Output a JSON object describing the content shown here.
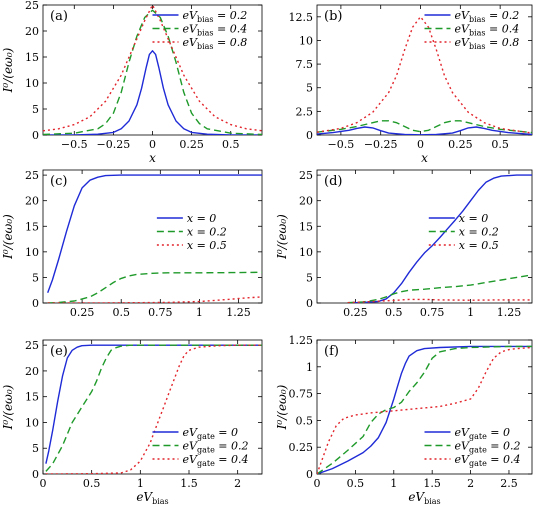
{
  "colors": {
    "blue": "#1f2bd6",
    "green": "#1f9a2a",
    "red": "#e2242b"
  },
  "chart_data": [
    {
      "type": "line",
      "panel_label": "(a)",
      "xlabel": "x",
      "ylabel": "I⁰/(eω₀)",
      "xlim": [
        -0.7,
        0.7
      ],
      "ylim": [
        0,
        25
      ],
      "xticks": [
        -0.5,
        -0.25,
        0,
        0.25,
        0.5
      ],
      "xticklabels": [
        "−0.5",
        "−0.25",
        "0",
        "0.25",
        "0.5"
      ],
      "yticks": [
        0,
        5,
        10,
        15,
        20,
        25
      ],
      "yticklabels": [
        "0",
        "5",
        "10",
        "15",
        "20",
        "25"
      ],
      "legend": "top-right",
      "series": [
        {
          "name": "eVbias = 0.2",
          "color": "blue",
          "dash": "solid",
          "x": [
            -0.7,
            -0.5,
            -0.35,
            -0.25,
            -0.2,
            -0.15,
            -0.1,
            -0.07,
            -0.04,
            -0.02,
            0,
            0.02,
            0.04,
            0.07,
            0.1,
            0.15,
            0.2,
            0.25,
            0.35,
            0.5,
            0.7
          ],
          "y": [
            0,
            0.02,
            0.15,
            0.5,
            1.2,
            2.7,
            5.8,
            9,
            13,
            15.5,
            16.2,
            15.5,
            13,
            9,
            5.8,
            2.7,
            1.2,
            0.5,
            0.15,
            0.02,
            0
          ]
        },
        {
          "name": "eVbias = 0.4",
          "color": "green",
          "dash": "dashed",
          "x": [
            -0.7,
            -0.5,
            -0.35,
            -0.3,
            -0.25,
            -0.2,
            -0.15,
            -0.1,
            -0.05,
            0,
            0.05,
            0.1,
            0.15,
            0.2,
            0.25,
            0.3,
            0.35,
            0.5,
            0.7
          ],
          "y": [
            0.1,
            0.35,
            1.2,
            2.2,
            4.2,
            8.2,
            14,
            19,
            22.6,
            24,
            22.6,
            19,
            14,
            8.2,
            4.2,
            2.2,
            1.2,
            0.35,
            0.1
          ]
        },
        {
          "name": "eVbias = 0.8",
          "color": "red",
          "dash": "dotted",
          "x": [
            -0.7,
            -0.6,
            -0.5,
            -0.4,
            -0.3,
            -0.2,
            -0.1,
            -0.05,
            0,
            0.05,
            0.1,
            0.2,
            0.3,
            0.4,
            0.5,
            0.6,
            0.7
          ],
          "y": [
            0.8,
            1.2,
            2,
            3.5,
            6.5,
            11.5,
            18.5,
            22,
            25,
            22,
            18.5,
            11.5,
            6.5,
            3.5,
            2,
            1.2,
            0.8
          ]
        }
      ]
    },
    {
      "type": "line",
      "panel_label": "(b)",
      "xlabel": "x",
      "ylabel": "",
      "xlim": [
        -0.65,
        0.7
      ],
      "ylim": [
        0,
        13.75
      ],
      "xticks": [
        -0.5,
        -0.25,
        0,
        0.25,
        0.5
      ],
      "xticklabels": [
        "−0.5",
        "−0.25",
        "0",
        "0.25",
        "0.5"
      ],
      "yticks": [
        0,
        2.5,
        5,
        7.5,
        10,
        12.5
      ],
      "yticklabels": [
        "0",
        "2.5",
        "5",
        "7.5",
        "10",
        "12.5"
      ],
      "legend": "top-right",
      "series": [
        {
          "name": "eVbias = 0.2",
          "color": "blue",
          "dash": "solid",
          "x": [
            -0.65,
            -0.55,
            -0.45,
            -0.4,
            -0.35,
            -0.3,
            -0.25,
            -0.2,
            -0.1,
            0,
            0.1,
            0.2,
            0.25,
            0.3,
            0.35,
            0.4,
            0.45,
            0.55,
            0.7
          ],
          "y": [
            0.1,
            0.25,
            0.5,
            0.7,
            0.85,
            0.75,
            0.45,
            0.2,
            0.05,
            0.02,
            0.05,
            0.2,
            0.45,
            0.75,
            0.85,
            0.7,
            0.5,
            0.25,
            0.05
          ]
        },
        {
          "name": "eVbias = 0.4",
          "color": "green",
          "dash": "dashed",
          "x": [
            -0.65,
            -0.5,
            -0.4,
            -0.3,
            -0.25,
            -0.2,
            -0.15,
            -0.1,
            -0.05,
            0,
            0.05,
            0.1,
            0.15,
            0.2,
            0.25,
            0.3,
            0.4,
            0.5,
            0.7
          ],
          "y": [
            0.3,
            0.6,
            0.9,
            1.3,
            1.5,
            1.5,
            1.3,
            0.9,
            0.5,
            0.35,
            0.5,
            0.9,
            1.3,
            1.5,
            1.5,
            1.3,
            0.9,
            0.6,
            0.25
          ]
        },
        {
          "name": "eVbias = 0.8",
          "color": "red",
          "dash": "dotted",
          "x": [
            -0.65,
            -0.5,
            -0.4,
            -0.3,
            -0.2,
            -0.15,
            -0.1,
            -0.05,
            0,
            0.05,
            0.1,
            0.15,
            0.2,
            0.3,
            0.4,
            0.5,
            0.7
          ],
          "y": [
            0.3,
            0.7,
            1.3,
            2.4,
            4.5,
            6.3,
            9,
            11.4,
            12.5,
            11.4,
            9,
            6.3,
            4.5,
            2.4,
            1.3,
            0.7,
            0.2
          ]
        }
      ]
    },
    {
      "type": "line",
      "panel_label": "(c)",
      "xlabel": "",
      "ylabel": "I⁰/(eω₀)",
      "xlim": [
        0,
        1.4
      ],
      "ylim": [
        0,
        26
      ],
      "xticks": [
        0.25,
        0.5,
        0.75,
        1,
        1.25
      ],
      "xticklabels": [
        "0.25",
        "0.5",
        "0.75",
        "1",
        "1.25"
      ],
      "yticks": [
        0,
        5,
        10,
        15,
        20,
        25
      ],
      "yticklabels": [
        "0",
        "5",
        "10",
        "15",
        "20",
        "25"
      ],
      "legend": "center-right",
      "series": [
        {
          "name": "x = 0",
          "color": "blue",
          "dash": "solid",
          "x": [
            0.03,
            0.06,
            0.1,
            0.15,
            0.2,
            0.25,
            0.3,
            0.35,
            0.4,
            0.5,
            0.6,
            0.8,
            1,
            1.2,
            1.4
          ],
          "y": [
            2,
            4.5,
            8.5,
            14,
            19,
            22.5,
            24,
            24.6,
            24.9,
            25,
            25,
            25,
            25,
            25,
            25
          ]
        },
        {
          "name": "x = 0.2",
          "color": "green",
          "dash": "dashed",
          "x": [
            0.03,
            0.1,
            0.2,
            0.3,
            0.35,
            0.4,
            0.45,
            0.5,
            0.55,
            0.6,
            0.7,
            0.8,
            1,
            1.2,
            1.4
          ],
          "y": [
            0.02,
            0.1,
            0.4,
            1.2,
            2,
            3,
            4,
            4.8,
            5.3,
            5.6,
            5.8,
            5.9,
            5.9,
            5.95,
            6
          ]
        },
        {
          "name": "x = 0.5",
          "color": "red",
          "dash": "dotted",
          "x": [
            0.03,
            0.4,
            0.6,
            0.8,
            1,
            1.1,
            1.2,
            1.3,
            1.4
          ],
          "y": [
            0,
            0.02,
            0.05,
            0.12,
            0.3,
            0.5,
            0.75,
            1,
            1.2
          ]
        }
      ]
    },
    {
      "type": "line",
      "panel_label": "(d)",
      "xlabel": "",
      "ylabel": "I⁰/(eω₀)",
      "xlim": [
        0,
        1.4
      ],
      "ylim": [
        0,
        26
      ],
      "xticks": [
        0.25,
        0.5,
        0.75,
        1,
        1.25
      ],
      "xticklabels": [
        "0.25",
        "0.5",
        "0.75",
        "1",
        "1.25"
      ],
      "yticks": [
        0,
        5,
        10,
        15,
        20,
        25
      ],
      "yticklabels": [
        "0",
        "5",
        "10",
        "15",
        "20",
        "25"
      ],
      "legend": "center-right",
      "series": [
        {
          "name": "x = 0",
          "color": "blue",
          "dash": "solid",
          "x": [
            0.2,
            0.3,
            0.4,
            0.45,
            0.5,
            0.55,
            0.6,
            0.65,
            0.7,
            0.75,
            0.8,
            0.85,
            0.9,
            0.95,
            1,
            1.05,
            1.1,
            1.15,
            1.2,
            1.3,
            1.4
          ],
          "y": [
            0,
            0.1,
            0.3,
            0.8,
            2,
            3.8,
            6,
            8,
            9.8,
            11.2,
            12.8,
            14.5,
            16.2,
            18,
            20,
            22,
            23.6,
            24.4,
            24.8,
            25,
            25
          ]
        },
        {
          "name": "x = 0.2",
          "color": "green",
          "dash": "dashed",
          "x": [
            0.2,
            0.3,
            0.4,
            0.45,
            0.5,
            0.55,
            0.6,
            0.7,
            0.8,
            0.9,
            1,
            1.1,
            1.2,
            1.3,
            1.4
          ],
          "y": [
            0.05,
            0.2,
            0.7,
            1.2,
            1.8,
            2.2,
            2.5,
            2.7,
            3,
            3.2,
            3.5,
            4,
            4.5,
            5,
            5.5
          ]
        },
        {
          "name": "x = 0.5",
          "color": "red",
          "dash": "dotted",
          "x": [
            0.2,
            0.3,
            0.4,
            0.5,
            0.6,
            0.7,
            0.8,
            1,
            1.2,
            1.4
          ],
          "y": [
            0.05,
            0.2,
            0.35,
            0.5,
            0.7,
            0.7,
            0.6,
            0.55,
            0.6,
            0.6
          ]
        }
      ]
    },
    {
      "type": "line",
      "panel_label": "(e)",
      "xlabel": "eVbias",
      "ylabel": "I⁰/(eω₀)",
      "xlim": [
        0,
        2.25
      ],
      "ylim": [
        0,
        26
      ],
      "xticks": [
        0,
        0.5,
        1,
        1.5,
        2
      ],
      "xticklabels": [
        "0",
        "0.5",
        "1",
        "1.5",
        "2"
      ],
      "yticks": [
        0,
        5,
        10,
        15,
        20,
        25
      ],
      "yticklabels": [
        "0",
        "5",
        "10",
        "15",
        "20",
        "25"
      ],
      "legend": "bottom-right",
      "series": [
        {
          "name": "eVgate = 0",
          "color": "blue",
          "dash": "solid",
          "x": [
            0.03,
            0.06,
            0.1,
            0.15,
            0.2,
            0.25,
            0.3,
            0.35,
            0.4,
            0.5,
            0.6,
            0.8,
            1,
            1.5,
            2,
            2.25
          ],
          "y": [
            2,
            4.5,
            8.5,
            14,
            19,
            22.5,
            24,
            24.6,
            24.9,
            25,
            25,
            25,
            25,
            25,
            25,
            25
          ]
        },
        {
          "name": "eVgate = 0.2",
          "color": "green",
          "dash": "dashed",
          "x": [
            0.03,
            0.1,
            0.2,
            0.3,
            0.4,
            0.5,
            0.55,
            0.6,
            0.65,
            0.7,
            0.75,
            0.8,
            0.9,
            1,
            1.5,
            2,
            2.25
          ],
          "y": [
            0.5,
            2,
            5.5,
            10,
            13,
            16,
            18,
            20.5,
            22.5,
            24,
            24.5,
            24.8,
            25,
            25,
            25,
            25,
            25
          ]
        },
        {
          "name": "eVgate = 0.4",
          "color": "red",
          "dash": "dotted",
          "x": [
            0.03,
            0.5,
            0.8,
            0.9,
            1,
            1.1,
            1.15,
            1.2,
            1.25,
            1.3,
            1.35,
            1.4,
            1.45,
            1.5,
            1.6,
            1.8,
            2,
            2.25
          ],
          "y": [
            0,
            0.05,
            0.2,
            0.8,
            2.5,
            6,
            8.5,
            11,
            13.5,
            16,
            18.5,
            21,
            23,
            24,
            24.6,
            24.9,
            25,
            25
          ]
        }
      ]
    },
    {
      "type": "line",
      "panel_label": "(f)",
      "xlabel": "eVbias",
      "ylabel": "I⁰/(eω₀)",
      "xlim": [
        0,
        2.8
      ],
      "ylim": [
        0,
        1.25
      ],
      "xticks": [
        0,
        0.5,
        1,
        1.5,
        2,
        2.5
      ],
      "xticklabels": [
        "0",
        "0.5",
        "1",
        "1.5",
        "2",
        "2.5"
      ],
      "yticks": [
        0,
        0.25,
        0.5,
        0.75,
        1,
        1.25
      ],
      "yticklabels": [
        "0",
        "0.25",
        "0.5",
        "0.75",
        "1",
        "1.25"
      ],
      "legend": "bottom-right",
      "series": [
        {
          "name": "eVgate = 0",
          "color": "blue",
          "dash": "solid",
          "x": [
            0,
            0.2,
            0.4,
            0.6,
            0.7,
            0.8,
            0.9,
            1,
            1.05,
            1.1,
            1.15,
            1.2,
            1.3,
            1.4,
            1.6,
            2,
            2.5,
            2.8
          ],
          "y": [
            0,
            0.05,
            0.12,
            0.2,
            0.26,
            0.34,
            0.48,
            0.7,
            0.82,
            0.94,
            1.03,
            1.1,
            1.15,
            1.17,
            1.18,
            1.19,
            1.19,
            1.19
          ]
        },
        {
          "name": "eVgate = 0.2",
          "color": "green",
          "dash": "dashed",
          "x": [
            0,
            0.2,
            0.4,
            0.6,
            0.7,
            0.8,
            0.9,
            1,
            1.1,
            1.2,
            1.3,
            1.4,
            1.5,
            1.6,
            1.8,
            2,
            2.5,
            2.8
          ],
          "y": [
            0,
            0.1,
            0.22,
            0.35,
            0.48,
            0.56,
            0.6,
            0.62,
            0.67,
            0.77,
            0.85,
            0.95,
            1.08,
            1.14,
            1.17,
            1.18,
            1.19,
            1.19
          ]
        },
        {
          "name": "eVgate = 0.4",
          "color": "red",
          "dash": "dotted",
          "x": [
            0,
            0.05,
            0.15,
            0.25,
            0.35,
            0.5,
            0.7,
            1,
            1.3,
            1.6,
            1.8,
            2,
            2.1,
            2.2,
            2.3,
            2.4,
            2.5,
            2.6,
            2.8
          ],
          "y": [
            0,
            0.1,
            0.3,
            0.45,
            0.52,
            0.55,
            0.57,
            0.59,
            0.61,
            0.63,
            0.66,
            0.7,
            0.8,
            0.95,
            1.08,
            1.14,
            1.16,
            1.17,
            1.18
          ]
        }
      ]
    }
  ]
}
